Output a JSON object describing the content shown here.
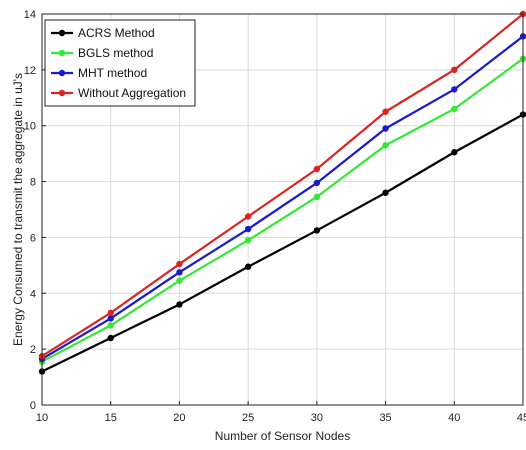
{
  "chart_data": {
    "type": "line",
    "title": "",
    "xlabel": "Number of Sensor Nodes",
    "ylabel": "Energy Consumed to transmit the aggregate in uJ's",
    "x": [
      10,
      15,
      20,
      25,
      30,
      35,
      40,
      45
    ],
    "xlim": [
      10,
      45
    ],
    "ylim": [
      0,
      14
    ],
    "xticks": [
      10,
      15,
      20,
      25,
      30,
      35,
      40,
      45
    ],
    "yticks": [
      0,
      2,
      4,
      6,
      8,
      10,
      12,
      14
    ],
    "grid": true,
    "legend_position": "top-left",
    "series": [
      {
        "name": "ACRS Method",
        "color": "#000000",
        "values": [
          1.2,
          2.4,
          3.6,
          4.95,
          6.25,
          7.6,
          9.05,
          10.4
        ]
      },
      {
        "name": "BGLS method",
        "color": "#33e833",
        "values": [
          1.55,
          2.85,
          4.45,
          5.9,
          7.45,
          9.3,
          10.6,
          12.4
        ]
      },
      {
        "name": "MHT method",
        "color": "#1a1acc",
        "values": [
          1.65,
          3.1,
          4.75,
          6.3,
          7.95,
          9.9,
          11.3,
          13.2
        ]
      },
      {
        "name": "Without Aggregation",
        "color": "#dd2222",
        "values": [
          1.75,
          3.3,
          5.05,
          6.75,
          8.45,
          10.5,
          12.0,
          14.0
        ]
      }
    ]
  }
}
